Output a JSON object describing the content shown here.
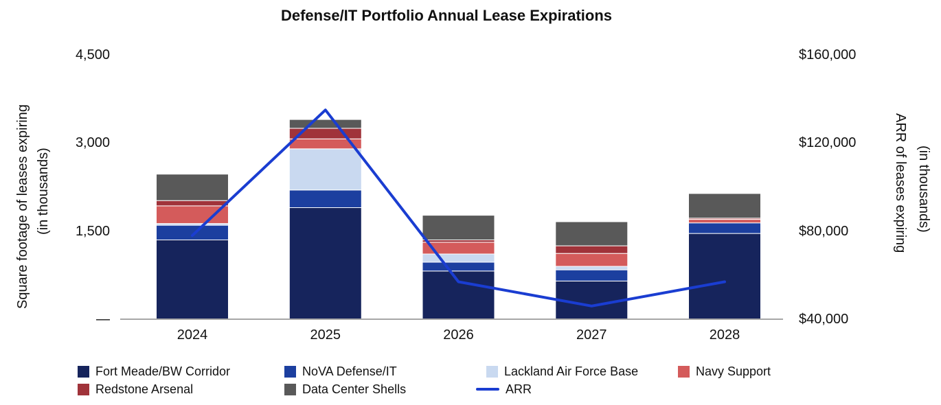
{
  "title": "Defense/IT Portfolio Annual Lease Expirations",
  "axes": {
    "left": {
      "label_line1": "Square footage of leases expiring",
      "label_line2": "(in thousands)",
      "ticks": [
        {
          "value": 4500,
          "label": "4,500"
        },
        {
          "value": 3000,
          "label": "3,000"
        },
        {
          "value": 1500,
          "label": "1,500"
        },
        {
          "value": 0,
          "label": "—"
        }
      ]
    },
    "right": {
      "label_line1": "ARR of leases expiring",
      "label_line2": "(in thousands)",
      "ticks": [
        {
          "value": 160000,
          "label": "$160,000"
        },
        {
          "value": 120000,
          "label": "$120,000"
        },
        {
          "value": 80000,
          "label": "$80,000"
        },
        {
          "value": 40000,
          "label": "$40,000"
        }
      ]
    }
  },
  "chart_data": {
    "type": "bar",
    "subtype": "stacked-bars-with-line-dual-axis",
    "title": "Defense/IT Portfolio Annual Lease Expirations",
    "categories": [
      "2024",
      "2025",
      "2026",
      "2027",
      "2028"
    ],
    "series": [
      {
        "name": "Fort Meade/BW Corridor",
        "color": "#16245c",
        "values": [
          1350,
          1900,
          820,
          650,
          1460
        ]
      },
      {
        "name": "NoVA Defense/IT",
        "color": "#1c3f9f",
        "values": [
          250,
          300,
          150,
          190,
          180
        ]
      },
      {
        "name": "Lackland Air Force Base",
        "color": "#c9d9f0",
        "values": [
          30,
          700,
          140,
          60,
          0
        ]
      },
      {
        "name": "Navy Support",
        "color": "#d45b5b",
        "values": [
          300,
          170,
          200,
          220,
          60
        ]
      },
      {
        "name": "Redstone Arsenal",
        "color": "#a0333a",
        "values": [
          90,
          180,
          40,
          130,
          20
        ]
      },
      {
        "name": "Data Center Shells",
        "color": "#595959",
        "values": [
          450,
          150,
          420,
          410,
          420
        ]
      }
    ],
    "line_series": {
      "name": "ARR",
      "color": "#1a3dd1",
      "axis": "right",
      "values": [
        78000,
        135000,
        57000,
        46000,
        57000
      ]
    },
    "xlabel": "",
    "ylabel_left": "Square footage of leases expiring (in thousands)",
    "ylabel_right": "ARR of leases expiring (in thousands)",
    "ylim_left": [
      0,
      4500
    ],
    "ylim_right": [
      40000,
      160000
    ],
    "grid": false,
    "legend_position": "bottom"
  },
  "legend": {
    "items": [
      {
        "label": "Fort Meade/BW Corridor",
        "color": "#16245c",
        "type": "swatch",
        "row": 0,
        "col": 0
      },
      {
        "label": "NoVA Defense/IT",
        "color": "#1c3f9f",
        "type": "swatch",
        "row": 0,
        "col": 1
      },
      {
        "label": "Lackland Air Force Base",
        "color": "#c9d9f0",
        "type": "swatch",
        "row": 0,
        "col": 2
      },
      {
        "label": "Navy Support",
        "color": "#d45b5b",
        "type": "swatch",
        "row": 0,
        "col": 3
      },
      {
        "label": "Redstone Arsenal",
        "color": "#a0333a",
        "type": "swatch",
        "row": 1,
        "col": 0
      },
      {
        "label": "Data Center Shells",
        "color": "#595959",
        "type": "swatch",
        "row": 1,
        "col": 1
      },
      {
        "label": "ARR",
        "color": "#1a3dd1",
        "type": "line",
        "row": 1,
        "col": 2
      }
    ]
  }
}
